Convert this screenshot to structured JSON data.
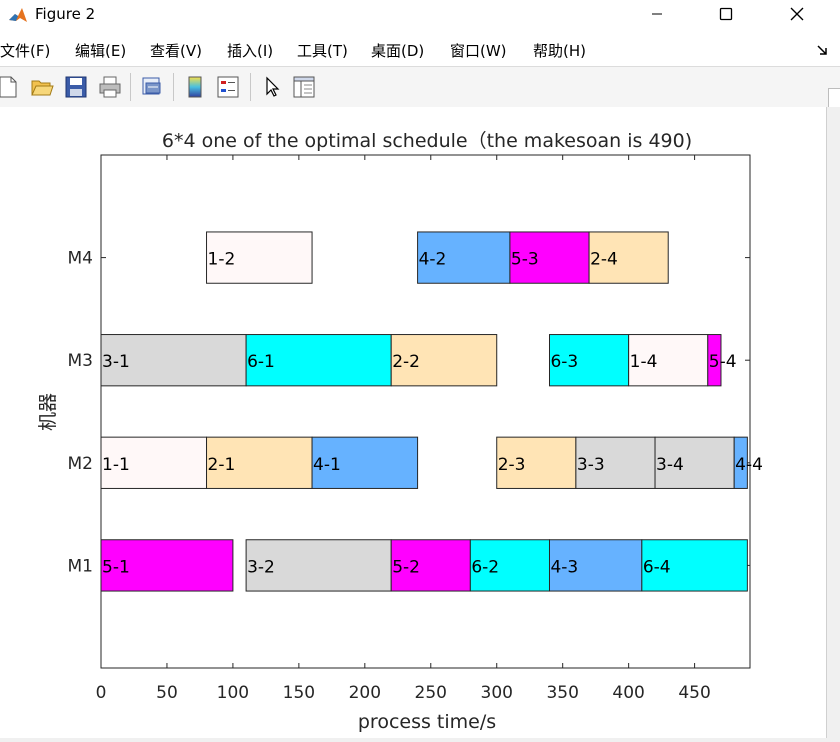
{
  "window": {
    "title": "Figure 2"
  },
  "menu": {
    "items": [
      "文件(F)",
      "编辑(E)",
      "查看(V)",
      "插入(I)",
      "工具(T)",
      "桌面(D)",
      "窗口(W)",
      "帮助(H)"
    ]
  },
  "toolbar": {
    "icons": [
      "new-file-icon",
      "open-folder-icon",
      "save-icon",
      "print-icon",
      "print-preview-icon",
      "colorbar-icon",
      "legend-icon",
      "pointer-icon",
      "property-inspector-icon"
    ]
  },
  "chart_data": {
    "type": "gantt",
    "title": "6*4 one of the optimal schedule（the makesoan is 490)",
    "xlabel": "process time/s",
    "ylabel": "机器",
    "xlim": [
      0,
      492
    ],
    "ylim": [
      0,
      5
    ],
    "xticks": [
      0,
      50,
      100,
      150,
      200,
      250,
      300,
      350,
      400,
      450
    ],
    "machines": [
      "M1",
      "M2",
      "M3",
      "M4"
    ],
    "colors": {
      "job1": "#fff8f8",
      "job2": "#ffe4b5",
      "job3": "#d9d9d9",
      "job4": "#66b2ff",
      "job5": "#ff00ff",
      "job6": "#00ffff"
    },
    "tasks": [
      {
        "machine": 1,
        "label": "5-1",
        "job": 5,
        "start": 0,
        "end": 100
      },
      {
        "machine": 1,
        "label": "3-2",
        "job": 3,
        "start": 110,
        "end": 220
      },
      {
        "machine": 1,
        "label": "5-2",
        "job": 5,
        "start": 220,
        "end": 280
      },
      {
        "machine": 1,
        "label": "6-2",
        "job": 6,
        "start": 280,
        "end": 340
      },
      {
        "machine": 1,
        "label": "4-3",
        "job": 4,
        "start": 340,
        "end": 410
      },
      {
        "machine": 1,
        "label": "6-4",
        "job": 6,
        "start": 410,
        "end": 490
      },
      {
        "machine": 2,
        "label": "1-1",
        "job": 1,
        "start": 0,
        "end": 80
      },
      {
        "machine": 2,
        "label": "2-1",
        "job": 2,
        "start": 80,
        "end": 160
      },
      {
        "machine": 2,
        "label": "4-1",
        "job": 4,
        "start": 160,
        "end": 240
      },
      {
        "machine": 2,
        "label": "2-3",
        "job": 2,
        "start": 300,
        "end": 360
      },
      {
        "machine": 2,
        "label": "3-3",
        "job": 3,
        "start": 360,
        "end": 420
      },
      {
        "machine": 2,
        "label": "3-4",
        "job": 3,
        "start": 420,
        "end": 480
      },
      {
        "machine": 2,
        "label": "4-4",
        "job": 4,
        "start": 480,
        "end": 490
      },
      {
        "machine": 3,
        "label": "3-1",
        "job": 3,
        "start": 0,
        "end": 110
      },
      {
        "machine": 3,
        "label": "6-1",
        "job": 6,
        "start": 110,
        "end": 220
      },
      {
        "machine": 3,
        "label": "2-2",
        "job": 2,
        "start": 220,
        "end": 300
      },
      {
        "machine": 3,
        "label": "6-3",
        "job": 6,
        "start": 340,
        "end": 400
      },
      {
        "machine": 3,
        "label": "1-4",
        "job": 1,
        "start": 400,
        "end": 460
      },
      {
        "machine": 3,
        "label": "5-4",
        "job": 5,
        "start": 460,
        "end": 470
      },
      {
        "machine": 4,
        "label": "1-2",
        "job": 1,
        "start": 80,
        "end": 160
      },
      {
        "machine": 4,
        "label": "4-2",
        "job": 4,
        "start": 240,
        "end": 310
      },
      {
        "machine": 4,
        "label": "5-3",
        "job": 5,
        "start": 310,
        "end": 370
      },
      {
        "machine": 4,
        "label": "2-4",
        "job": 2,
        "start": 370,
        "end": 430
      }
    ]
  }
}
